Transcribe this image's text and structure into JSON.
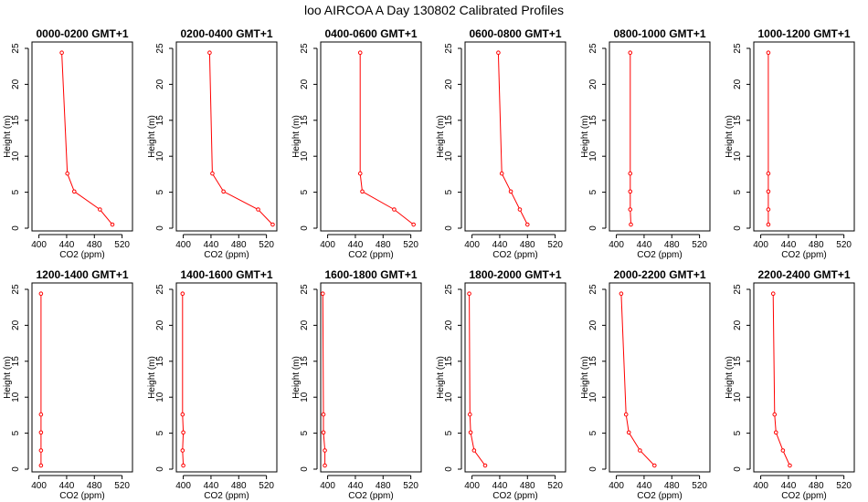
{
  "figure_title": "loo AIRCOA A  Day 130802  Calibrated Profiles",
  "chart_data": [
    {
      "type": "line",
      "title": "0000-0200 GMT+1",
      "xlabel": "CO2 (ppm)",
      "ylabel": "Height (m)",
      "xlim": [
        390,
        535
      ],
      "ylim": [
        0,
        25
      ],
      "xticks": [
        400,
        440,
        480,
        520
      ],
      "yticks": [
        0,
        5,
        10,
        15,
        20,
        25
      ],
      "grid": false,
      "series": [
        {
          "color": "#ff0000",
          "points": [
            {
              "x": 433,
              "y": 24.4
            },
            {
              "x": 441,
              "y": 7.6
            },
            {
              "x": 451,
              "y": 5.1
            },
            {
              "x": 488,
              "y": 2.6
            },
            {
              "x": 506,
              "y": 0.5
            }
          ]
        }
      ]
    },
    {
      "type": "line",
      "title": "0200-0400 GMT+1",
      "xlabel": "CO2 (ppm)",
      "ylabel": "Height (m)",
      "xlim": [
        390,
        535
      ],
      "ylim": [
        0,
        25
      ],
      "xticks": [
        400,
        440,
        480,
        520
      ],
      "yticks": [
        0,
        5,
        10,
        15,
        20,
        25
      ],
      "grid": false,
      "series": [
        {
          "color": "#ff0000",
          "points": [
            {
              "x": 438,
              "y": 24.4
            },
            {
              "x": 442,
              "y": 7.6
            },
            {
              "x": 458,
              "y": 5.1
            },
            {
              "x": 508,
              "y": 2.6
            },
            {
              "x": 529,
              "y": 0.5
            }
          ]
        }
      ]
    },
    {
      "type": "line",
      "title": "0400-0600 GMT+1",
      "xlabel": "CO2 (ppm)",
      "ylabel": "Height (m)",
      "xlim": [
        390,
        535
      ],
      "ylim": [
        0,
        25
      ],
      "xticks": [
        400,
        440,
        480,
        520
      ],
      "yticks": [
        0,
        5,
        10,
        15,
        20,
        25
      ],
      "grid": false,
      "series": [
        {
          "color": "#ff0000",
          "points": [
            {
              "x": 447,
              "y": 24.4
            },
            {
              "x": 447,
              "y": 7.6
            },
            {
              "x": 450,
              "y": 5.1
            },
            {
              "x": 496,
              "y": 2.6
            },
            {
              "x": 524,
              "y": 0.5
            }
          ]
        }
      ]
    },
    {
      "type": "line",
      "title": "0600-0800 GMT+1",
      "xlabel": "CO2 (ppm)",
      "ylabel": "Height (m)",
      "xlim": [
        390,
        535
      ],
      "ylim": [
        0,
        25
      ],
      "xticks": [
        400,
        440,
        480,
        520
      ],
      "yticks": [
        0,
        5,
        10,
        15,
        20,
        25
      ],
      "grid": false,
      "series": [
        {
          "color": "#ff0000",
          "points": [
            {
              "x": 438,
              "y": 24.4
            },
            {
              "x": 443,
              "y": 7.6
            },
            {
              "x": 456,
              "y": 5.1
            },
            {
              "x": 469,
              "y": 2.6
            },
            {
              "x": 480,
              "y": 0.5
            }
          ]
        }
      ]
    },
    {
      "type": "line",
      "title": "0800-1000 GMT+1",
      "xlabel": "CO2 (ppm)",
      "ylabel": "Height (m)",
      "xlim": [
        390,
        535
      ],
      "ylim": [
        0,
        25
      ],
      "xticks": [
        400,
        440,
        480,
        520
      ],
      "yticks": [
        0,
        5,
        10,
        15,
        20,
        25
      ],
      "grid": false,
      "series": [
        {
          "color": "#ff0000",
          "points": [
            {
              "x": 420,
              "y": 24.4
            },
            {
              "x": 420,
              "y": 7.6
            },
            {
              "x": 420,
              "y": 5.1
            },
            {
              "x": 420,
              "y": 2.6
            },
            {
              "x": 421,
              "y": 0.5
            }
          ]
        }
      ]
    },
    {
      "type": "line",
      "title": "1000-1200 GMT+1",
      "xlabel": "CO2 (ppm)",
      "ylabel": "Height (m)",
      "xlim": [
        390,
        535
      ],
      "ylim": [
        0,
        25
      ],
      "xticks": [
        400,
        440,
        480,
        520
      ],
      "yticks": [
        0,
        5,
        10,
        15,
        20,
        25
      ],
      "grid": false,
      "series": [
        {
          "color": "#ff0000",
          "points": [
            {
              "x": 411,
              "y": 24.4
            },
            {
              "x": 411,
              "y": 7.6
            },
            {
              "x": 411,
              "y": 5.1
            },
            {
              "x": 411,
              "y": 2.6
            },
            {
              "x": 411,
              "y": 0.5
            }
          ]
        }
      ]
    },
    {
      "type": "line",
      "title": "1200-1400 GMT+1",
      "xlabel": "CO2 (ppm)",
      "ylabel": "Height (m)",
      "xlim": [
        390,
        535
      ],
      "ylim": [
        0,
        25
      ],
      "xticks": [
        400,
        440,
        480,
        520
      ],
      "yticks": [
        0,
        5,
        10,
        15,
        20,
        25
      ],
      "grid": false,
      "series": [
        {
          "color": "#ff0000",
          "points": [
            {
              "x": 403,
              "y": 24.4
            },
            {
              "x": 403,
              "y": 7.6
            },
            {
              "x": 403,
              "y": 5.1
            },
            {
              "x": 403,
              "y": 2.6
            },
            {
              "x": 403,
              "y": 0.5
            }
          ]
        }
      ]
    },
    {
      "type": "line",
      "title": "1400-1600 GMT+1",
      "xlabel": "CO2 (ppm)",
      "ylabel": "Height (m)",
      "xlim": [
        390,
        535
      ],
      "ylim": [
        0,
        25
      ],
      "xticks": [
        400,
        440,
        480,
        520
      ],
      "yticks": [
        0,
        5,
        10,
        15,
        20,
        25
      ],
      "grid": false,
      "series": [
        {
          "color": "#ff0000",
          "points": [
            {
              "x": 399,
              "y": 24.4
            },
            {
              "x": 399,
              "y": 7.6
            },
            {
              "x": 400,
              "y": 5.1
            },
            {
              "x": 399,
              "y": 2.6
            },
            {
              "x": 400,
              "y": 0.5
            }
          ]
        }
      ]
    },
    {
      "type": "line",
      "title": "1600-1800 GMT+1",
      "xlabel": "CO2 (ppm)",
      "ylabel": "Height (m)",
      "xlim": [
        390,
        535
      ],
      "ylim": [
        0,
        25
      ],
      "xticks": [
        400,
        440,
        480,
        520
      ],
      "yticks": [
        0,
        5,
        10,
        15,
        20,
        25
      ],
      "grid": false,
      "series": [
        {
          "color": "#ff0000",
          "points": [
            {
              "x": 393,
              "y": 24.4
            },
            {
              "x": 394,
              "y": 7.6
            },
            {
              "x": 394,
              "y": 5.1
            },
            {
              "x": 396,
              "y": 2.6
            },
            {
              "x": 396,
              "y": 0.5
            }
          ]
        }
      ]
    },
    {
      "type": "line",
      "title": "1800-2000 GMT+1",
      "xlabel": "CO2 (ppm)",
      "ylabel": "Height (m)",
      "xlim": [
        390,
        535
      ],
      "ylim": [
        0,
        25
      ],
      "xticks": [
        400,
        440,
        480,
        520
      ],
      "yticks": [
        0,
        5,
        10,
        15,
        20,
        25
      ],
      "grid": false,
      "series": [
        {
          "color": "#ff0000",
          "points": [
            {
              "x": 396,
              "y": 24.4
            },
            {
              "x": 397,
              "y": 7.6
            },
            {
              "x": 398,
              "y": 5.1
            },
            {
              "x": 403,
              "y": 2.6
            },
            {
              "x": 419,
              "y": 0.5
            }
          ]
        }
      ]
    },
    {
      "type": "line",
      "title": "2000-2200 GMT+1",
      "xlabel": "CO2 (ppm)",
      "ylabel": "Height (m)",
      "xlim": [
        390,
        535
      ],
      "ylim": [
        0,
        25
      ],
      "xticks": [
        400,
        440,
        480,
        520
      ],
      "yticks": [
        0,
        5,
        10,
        15,
        20,
        25
      ],
      "grid": false,
      "series": [
        {
          "color": "#ff0000",
          "points": [
            {
              "x": 407,
              "y": 24.4
            },
            {
              "x": 414,
              "y": 7.6
            },
            {
              "x": 418,
              "y": 5.1
            },
            {
              "x": 434,
              "y": 2.6
            },
            {
              "x": 455,
              "y": 0.5
            }
          ]
        }
      ]
    },
    {
      "type": "line",
      "title": "2200-2400 GMT+1",
      "xlabel": "CO2 (ppm)",
      "ylabel": "Height (m)",
      "xlim": [
        390,
        535
      ],
      "ylim": [
        0,
        25
      ],
      "xticks": [
        400,
        440,
        480,
        520
      ],
      "yticks": [
        0,
        5,
        10,
        15,
        20,
        25
      ],
      "grid": false,
      "series": [
        {
          "color": "#ff0000",
          "points": [
            {
              "x": 418,
              "y": 24.4
            },
            {
              "x": 420,
              "y": 7.6
            },
            {
              "x": 422,
              "y": 5.1
            },
            {
              "x": 432,
              "y": 2.6
            },
            {
              "x": 442,
              "y": 0.5
            }
          ]
        }
      ]
    }
  ]
}
